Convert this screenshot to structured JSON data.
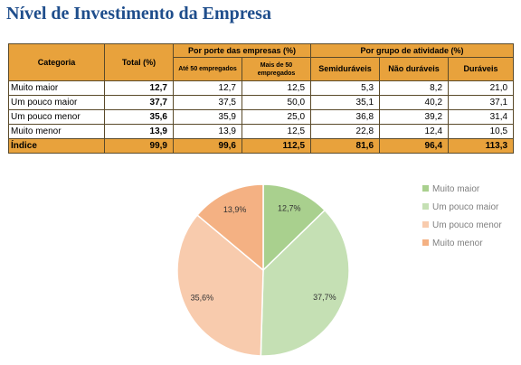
{
  "title": "Nível de Investimento da Empresa",
  "table": {
    "header_categoria": "Categoria",
    "header_total": "Total (%)",
    "group_porte": "Por porte das empresas (%)",
    "group_atividade": "Por grupo de atividade (%)",
    "sub_ate50": "Até 50 empregados",
    "sub_mais50": "Mais de 50 empregados",
    "sub_semi": "Semiduráveis",
    "sub_nao": "Não duráveis",
    "sub_dur": "Duráveis",
    "rows": [
      {
        "label": "Muito maior",
        "total": "12,7",
        "ate50": "12,7",
        "mais50": "12,5",
        "semi": "5,3",
        "nao": "8,2",
        "dur": "21,0"
      },
      {
        "label": "Um pouco maior",
        "total": "37,7",
        "ate50": "37,5",
        "mais50": "50,0",
        "semi": "35,1",
        "nao": "40,2",
        "dur": "37,1"
      },
      {
        "label": "Um pouco menor",
        "total": "35,6",
        "ate50": "35,9",
        "mais50": "25,0",
        "semi": "36,8",
        "nao": "39,2",
        "dur": "31,4"
      },
      {
        "label": "Muito menor",
        "total": "13,9",
        "ate50": "13,9",
        "mais50": "12,5",
        "semi": "22,8",
        "nao": "12,4",
        "dur": "10,5"
      },
      {
        "label": "Índice",
        "total": "99,9",
        "ate50": "99,6",
        "mais50": "112,5",
        "semi": "81,6",
        "nao": "96,4",
        "dur": "113,3"
      }
    ]
  },
  "colors": {
    "header_fill": "#e8a23c",
    "title": "#1f4e8c"
  },
  "chart_data": {
    "type": "pie",
    "categories": [
      "Muito maior",
      "Um pouco maior",
      "Um pouco menor",
      "Muito menor"
    ],
    "values": [
      12.7,
      37.7,
      35.6,
      13.9
    ],
    "labels": [
      "12,7%",
      "37,7%",
      "35,6%",
      "13,9%"
    ],
    "colors": [
      "#a9d08e",
      "#c5e0b4",
      "#f8cbad",
      "#f4b183"
    ],
    "legend": "right"
  }
}
